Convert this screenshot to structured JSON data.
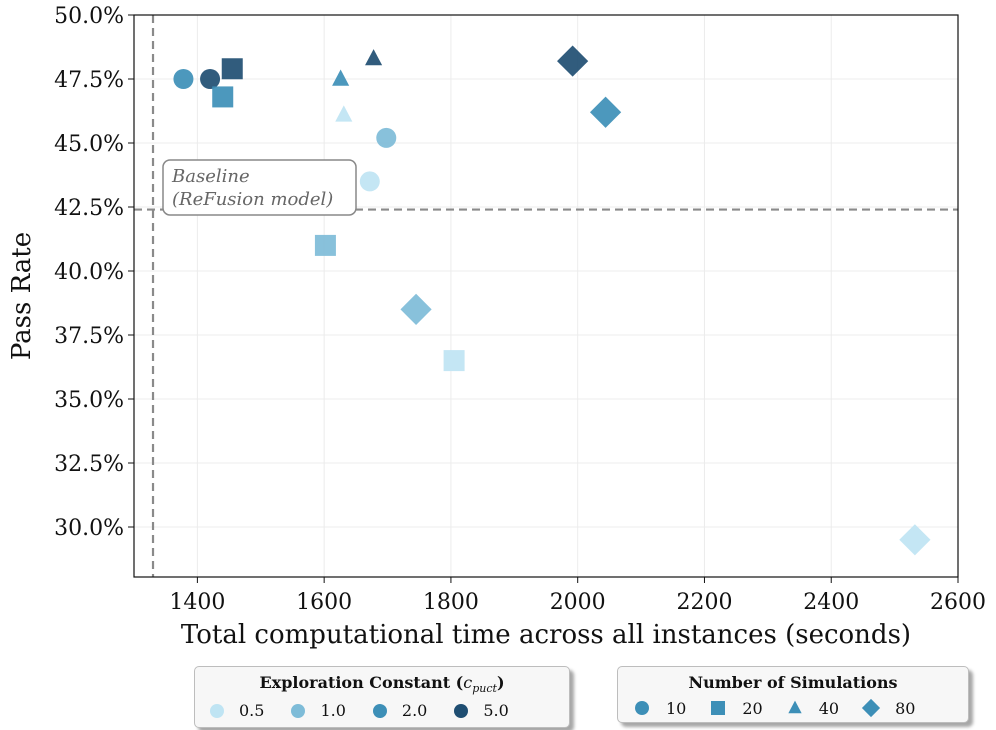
{
  "chart_data": {
    "type": "scatter",
    "xlabel": "Total computational time across all instances (seconds)",
    "ylabel": "Pass Rate",
    "xlim": [
      1300,
      2600
    ],
    "ylim": [
      28.0,
      50.0
    ],
    "x_ticks": [
      1400,
      1600,
      1800,
      2000,
      2200,
      2400,
      2600
    ],
    "y_ticks": [
      30.0,
      32.5,
      35.0,
      37.5,
      40.0,
      42.5,
      45.0,
      47.5,
      50.0
    ],
    "y_tick_format": "percent",
    "grid": true,
    "baseline": {
      "label_line1": "Baseline",
      "label_line2": "(ReFusion model)",
      "x": 1330,
      "y": 42.4
    },
    "colors": {
      "0.5": "#bfe4f3",
      "1.0": "#7ebcd8",
      "2.0": "#3d8fb7",
      "5.0": "#1f4e72"
    },
    "points": [
      {
        "x": 1378,
        "y": 47.5,
        "c": "2.0",
        "sims": 10
      },
      {
        "x": 1420,
        "y": 47.5,
        "c": "5.0",
        "sims": 10
      },
      {
        "x": 1698,
        "y": 45.2,
        "c": "1.0",
        "sims": 10
      },
      {
        "x": 1672,
        "y": 43.5,
        "c": "0.5",
        "sims": 10
      },
      {
        "x": 1440,
        "y": 46.8,
        "c": "2.0",
        "sims": 20
      },
      {
        "x": 1455,
        "y": 47.9,
        "c": "5.0",
        "sims": 20
      },
      {
        "x": 1602,
        "y": 41.0,
        "c": "1.0",
        "sims": 20
      },
      {
        "x": 1805,
        "y": 36.5,
        "c": "0.5",
        "sims": 20
      },
      {
        "x": 1626,
        "y": 47.5,
        "c": "2.0",
        "sims": 40
      },
      {
        "x": 1678,
        "y": 48.3,
        "c": "5.0",
        "sims": 40
      },
      {
        "x": 1631,
        "y": 46.1,
        "c": "0.5",
        "sims": 40
      },
      {
        "x": 1992,
        "y": 48.2,
        "c": "5.0",
        "sims": 80
      },
      {
        "x": 2044,
        "y": 46.2,
        "c": "2.0",
        "sims": 80
      },
      {
        "x": 1745,
        "y": 38.5,
        "c": "1.0",
        "sims": 80
      },
      {
        "x": 2532,
        "y": 29.5,
        "c": "0.5",
        "sims": 80
      }
    ]
  },
  "legend_exploration": {
    "title_prefix": "Exploration Constant (",
    "title_symbol": "c",
    "title_sub": "puct",
    "title_suffix": ")",
    "items": [
      {
        "label": "0.5",
        "color": "#bfe4f3"
      },
      {
        "label": "1.0",
        "color": "#7ebcd8"
      },
      {
        "label": "2.0",
        "color": "#3d8fb7"
      },
      {
        "label": "5.0",
        "color": "#1f4e72"
      }
    ]
  },
  "legend_simulations": {
    "title": "Number of Simulations",
    "color": "#3d8fb7",
    "items": [
      {
        "label": "10",
        "marker": "circle"
      },
      {
        "label": "20",
        "marker": "square"
      },
      {
        "label": "40",
        "marker": "triangle"
      },
      {
        "label": "80",
        "marker": "diamond"
      }
    ]
  }
}
